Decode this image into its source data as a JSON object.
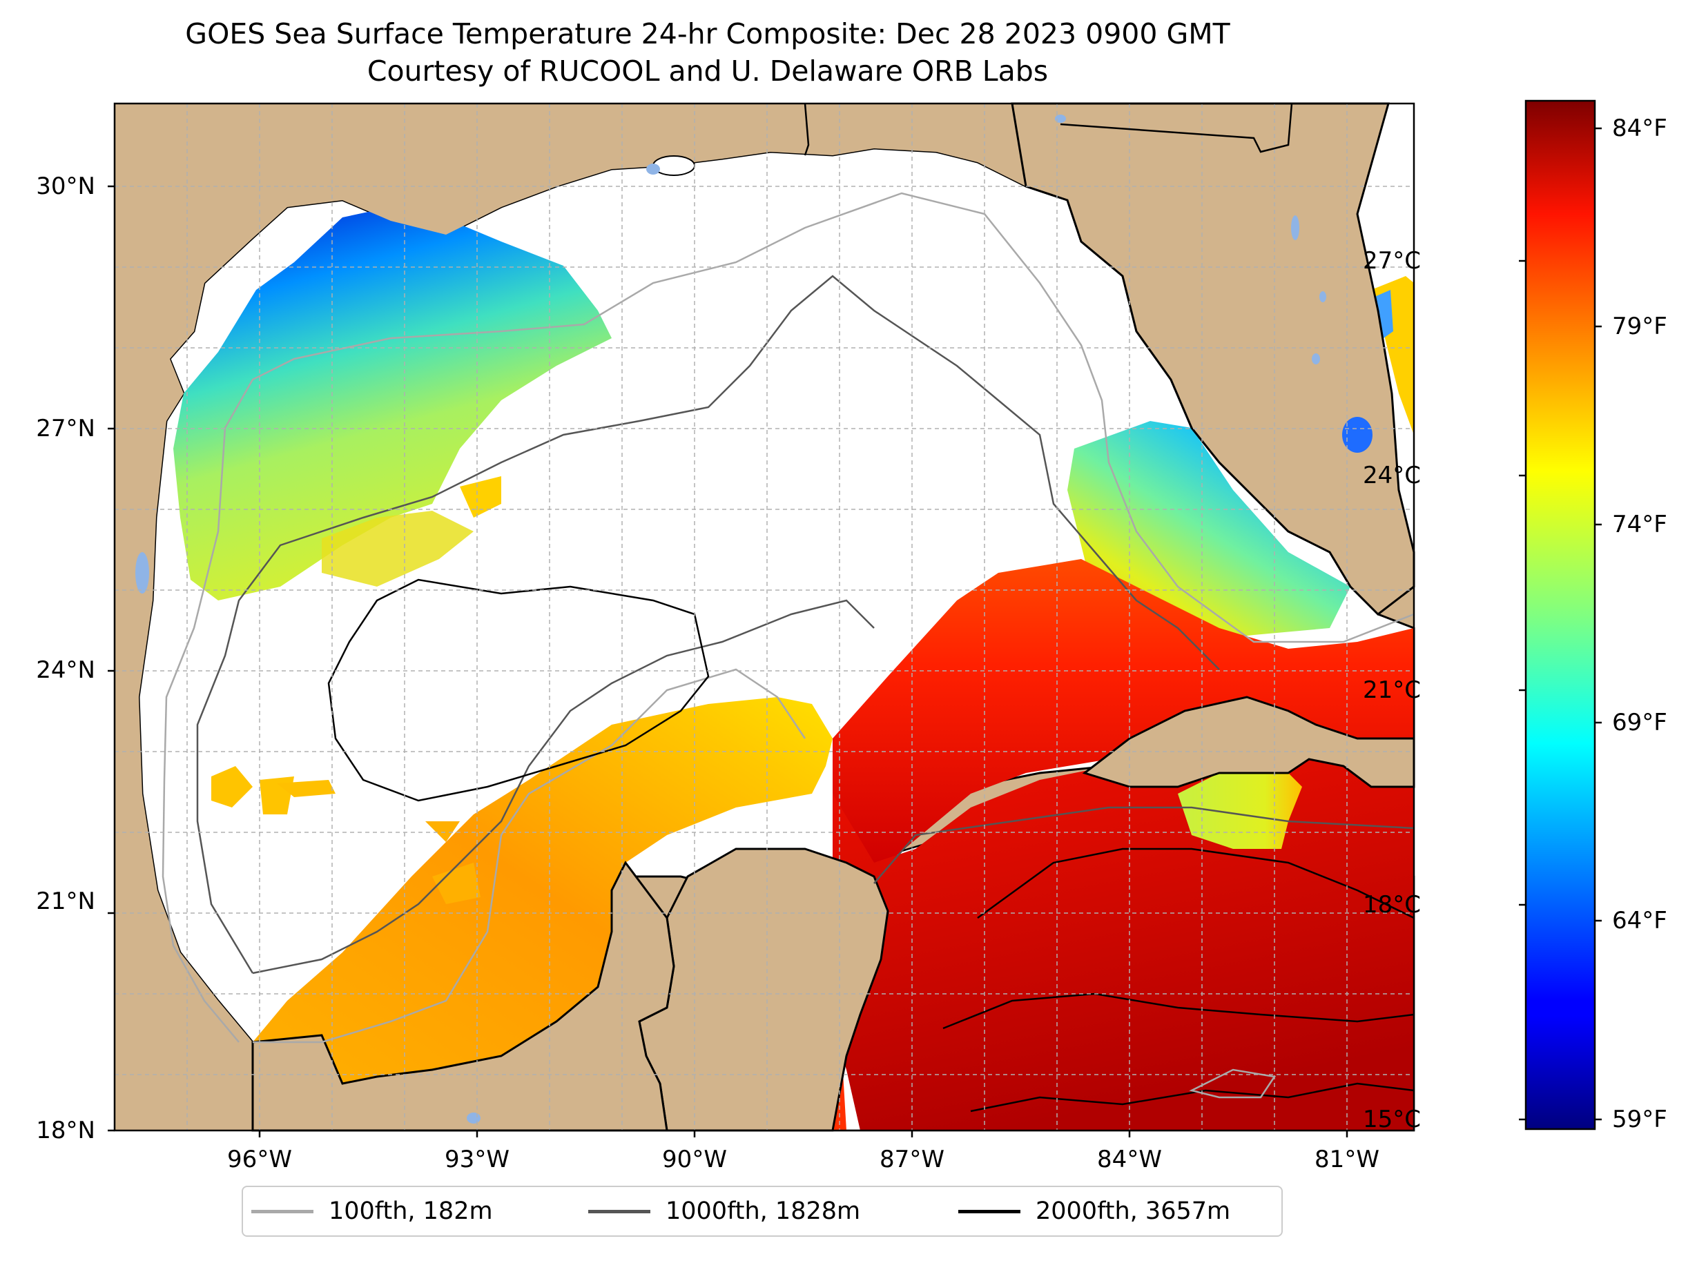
{
  "title": {
    "line1": "GOES Sea Surface Temperature 24-hr Composite: Dec 28 2023 0900 GMT",
    "line2": "Courtesy of RUCOOL and U. Delaware ORB Labs"
  },
  "map": {
    "lat_labels": [
      "30°N",
      "27°N",
      "24°N",
      "21°N",
      "18°N"
    ],
    "lon_labels": [
      "96°W",
      "93°W",
      "90°W",
      "87°W",
      "84°W",
      "81°W"
    ],
    "colors": {
      "land": "#d2b48c",
      "no_data": "#ffffff",
      "lakes": "#8fb4e6",
      "grid": "#b0b0b0"
    },
    "temperature_colormap": "jet"
  },
  "colorbar": {
    "celsius_labels": [
      "27°C",
      "24°C",
      "21°C",
      "18°C",
      "15°C"
    ],
    "fahrenheit_labels": [
      "84°F",
      "79°F",
      "74°F",
      "69°F",
      "64°F",
      "59°F"
    ],
    "range_c": [
      14.9,
      29.1
    ],
    "colormap": "jet"
  },
  "legend": {
    "items": [
      {
        "label": "100fth, 182m",
        "color": "#a9a9a9"
      },
      {
        "label": "1000fth, 1828m",
        "color": "#555555"
      },
      {
        "label": "2000fth, 3657m",
        "color": "#000000"
      }
    ]
  }
}
